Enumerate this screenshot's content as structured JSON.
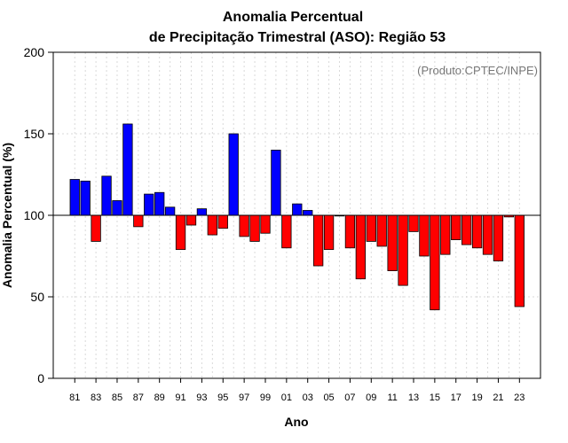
{
  "chart_data": {
    "type": "bar",
    "title": "Anomalia Percentual",
    "subtitle": "de Precipitação Trimestral (ASO): Região 53",
    "credit": "(Produto:CPTEC/INPE)",
    "xlabel": "Ano",
    "ylabel": "Anomalia Percentual (%)",
    "ylim": [
      0,
      200
    ],
    "yticks": [
      0,
      50,
      100,
      150,
      200
    ],
    "baseline": 100,
    "grid": true,
    "colors": {
      "above": "#0000ff",
      "below": "#ff0000"
    },
    "categories": [
      "81",
      "82",
      "83",
      "84",
      "85",
      "86",
      "87",
      "88",
      "89",
      "90",
      "91",
      "92",
      "93",
      "94",
      "95",
      "96",
      "97",
      "98",
      "99",
      "00",
      "01",
      "02",
      "03",
      "04",
      "05",
      "06",
      "07",
      "08",
      "09",
      "10",
      "11",
      "12",
      "13",
      "14",
      "15",
      "16",
      "17",
      "18",
      "19",
      "20",
      "21",
      "22",
      "23"
    ],
    "tick_labels": [
      "81",
      "83",
      "85",
      "87",
      "89",
      "91",
      "93",
      "95",
      "97",
      "99",
      "01",
      "03",
      "05",
      "07",
      "09",
      "11",
      "13",
      "15",
      "17",
      "19",
      "21",
      "23"
    ],
    "values": [
      122,
      121,
      84,
      124,
      109,
      156,
      93,
      113,
      114,
      105,
      79,
      94,
      104,
      88,
      92,
      150,
      87,
      84,
      89,
      140,
      80,
      107,
      103,
      69,
      79,
      100,
      80,
      61,
      84,
      81,
      66,
      57,
      90,
      75,
      42,
      76,
      85,
      82,
      80,
      76,
      72,
      99,
      44
    ]
  }
}
